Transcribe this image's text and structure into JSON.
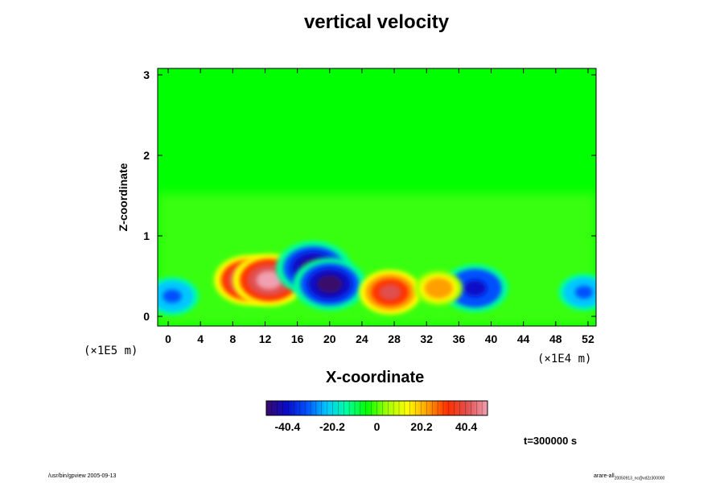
{
  "chart_data": {
    "type": "heatmap",
    "title": "vertical velocity",
    "xlabel": "X-coordinate",
    "ylabel": "Z-coordinate",
    "x_ticks": [
      "0",
      "4",
      "8",
      "12",
      "16",
      "20",
      "24",
      "28",
      "32",
      "36",
      "40",
      "44",
      "48",
      "52"
    ],
    "x_range": [
      -1.3,
      53
    ],
    "x_scale_note": "(×1E4 m)",
    "y_ticks": [
      "0",
      "1",
      "2",
      "3"
    ],
    "y_range": [
      -0.12,
      3.08
    ],
    "y_scale_note": "(×1E5 m)",
    "colorbar": {
      "ticks": [
        "-40.4",
        "-20.2",
        "0",
        "20.2",
        "40.4"
      ],
      "range": [
        -50,
        50
      ],
      "colors": [
        "#3a0a6a",
        "#0a0ac8",
        "#0050ff",
        "#00c8ff",
        "#00ffa0",
        "#00ff00",
        "#a0ff00",
        "#ffff00",
        "#ffa000",
        "#ff3000",
        "#e05050",
        "#f0a0b0"
      ]
    },
    "features": [
      {
        "kind": "updraft",
        "x": 10,
        "z": 0.45,
        "value": 45
      },
      {
        "kind": "updraft",
        "x": 12.5,
        "z": 0.45,
        "value": 48
      },
      {
        "kind": "downdraft",
        "x": 18,
        "z": 0.6,
        "value": -50
      },
      {
        "kind": "downdraft",
        "x": 20,
        "z": 0.4,
        "value": -48
      },
      {
        "kind": "updraft",
        "x": 27.5,
        "z": 0.3,
        "value": 38
      },
      {
        "kind": "downdraft",
        "x": 38,
        "z": 0.35,
        "value": -42
      },
      {
        "kind": "downdraft",
        "x": 0.5,
        "z": 0.25,
        "value": -30
      },
      {
        "kind": "downdraft",
        "x": 51.5,
        "z": 0.3,
        "value": -28
      },
      {
        "kind": "updraft",
        "x": 33.5,
        "z": 0.35,
        "value": 25
      }
    ],
    "time_label": "t=300000 s"
  },
  "footer": {
    "left": "/usr/bin/gpview 2005-09-13",
    "right_main": "arare-all",
    "right_sub": "20050913_nc@vd2z300000"
  }
}
